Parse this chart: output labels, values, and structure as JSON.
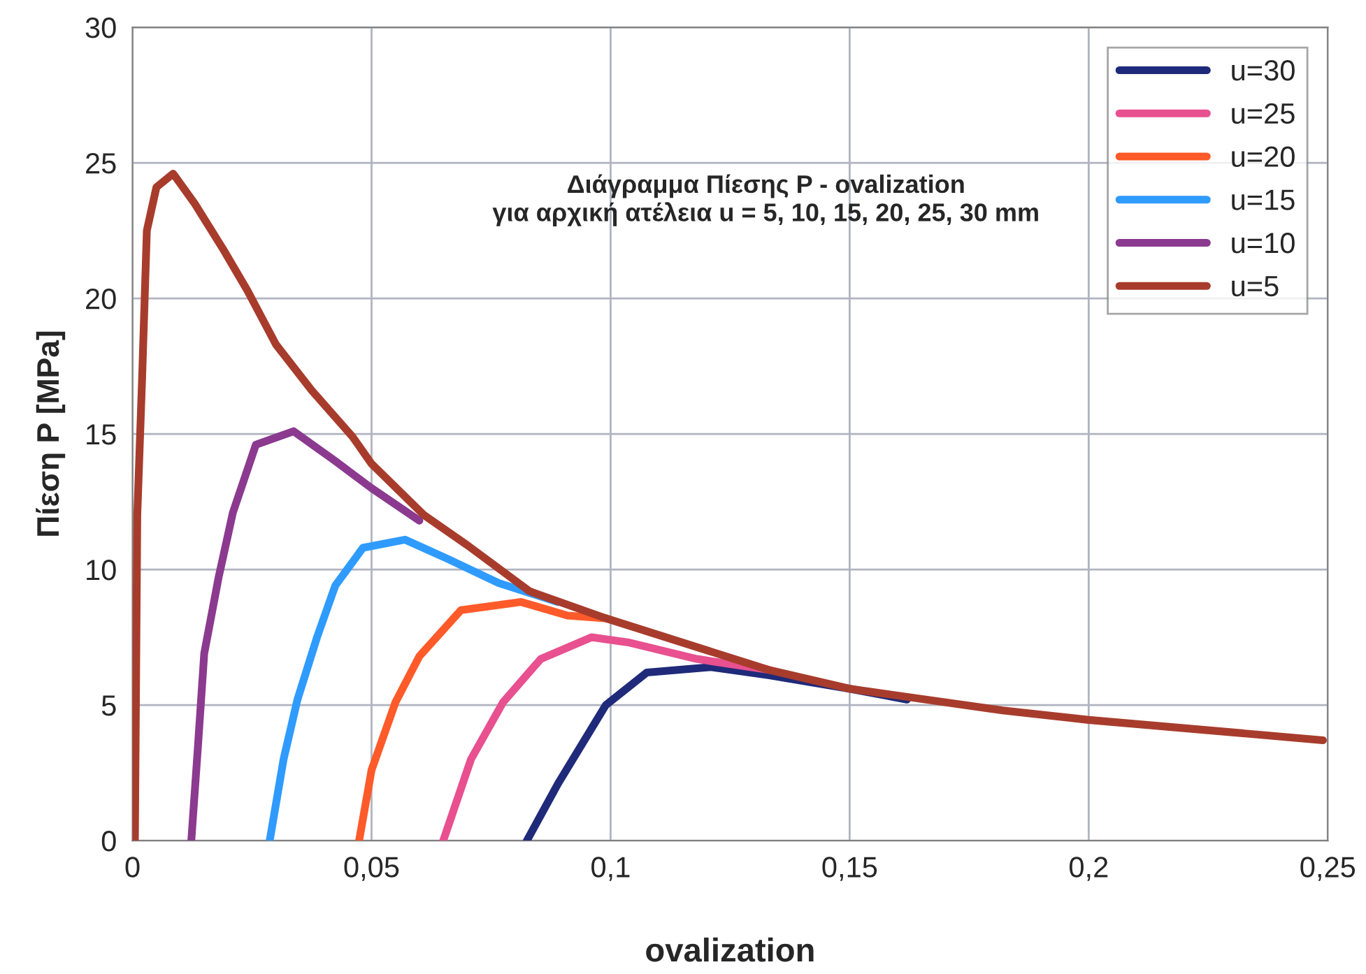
{
  "chart_data": {
    "type": "line",
    "title": "Διάγραμμα Πίεσης P - ovalization",
    "subtitle": "για αρχική ατέλεια u = 5, 10, 15, 20, 25, 30 mm",
    "xlabel": "ovalization",
    "ylabel": "Πίεση P [MPa]",
    "xlim": [
      0,
      0.25
    ],
    "ylim": [
      0,
      30
    ],
    "xticks": [
      0,
      {
        "value": 0.05,
        "label": "0,05"
      },
      {
        "value": 0.1,
        "label": "0,1"
      },
      {
        "value": 0.15,
        "label": "0,15"
      },
      {
        "value": 0.2,
        "label": "0,2"
      },
      {
        "value": 0.25,
        "label": "0,25"
      }
    ],
    "yticks": [
      0,
      5,
      10,
      15,
      20,
      25,
      30
    ],
    "grid": true,
    "legend": "top right",
    "series": [
      {
        "name": "u=30",
        "color": "#1f2a7a",
        "x": [
          0.0825,
          0.089,
          0.099,
          0.1076,
          0.121,
          0.133,
          0.15,
          0.162
        ],
        "values": [
          0,
          2.1,
          5.0,
          6.2,
          6.4,
          6.1,
          5.6,
          5.2
        ]
      },
      {
        "name": "u=25",
        "color": "#e8508f",
        "x": [
          0.065,
          0.0708,
          0.0775,
          0.0854,
          0.096,
          0.104,
          0.118,
          0.133
        ],
        "values": [
          0,
          3.0,
          5.1,
          6.7,
          7.5,
          7.3,
          6.7,
          6.3
        ]
      },
      {
        "name": "u=20",
        "color": "#ff5a2a",
        "x": [
          0.0474,
          0.05,
          0.055,
          0.06,
          0.0687,
          0.0813,
          0.091,
          0.099
        ],
        "values": [
          0,
          2.6,
          5.1,
          6.8,
          8.5,
          8.8,
          8.3,
          8.2
        ]
      },
      {
        "name": "u=15",
        "color": "#2f9bff",
        "x": [
          0.0287,
          0.0316,
          0.0345,
          0.0386,
          0.0424,
          0.0482,
          0.057,
          0.0658,
          0.0766,
          0.089
        ],
        "values": [
          0,
          3.0,
          5.2,
          7.5,
          9.4,
          10.8,
          11.1,
          10.4,
          9.5,
          8.8
        ]
      },
      {
        "name": "u=10",
        "color": "#8b3a8f",
        "x": [
          0.0123,
          0.0137,
          0.015,
          0.018,
          0.021,
          0.0258,
          0.0337,
          0.0424,
          0.05,
          0.06
        ],
        "values": [
          0,
          3.5,
          6.9,
          9.7,
          12.1,
          14.6,
          15.1,
          14.0,
          13.0,
          11.8
        ]
      },
      {
        "name": "u=5",
        "color": "#a83c2c",
        "x": [
          0.0005,
          0.001,
          0.002,
          0.003,
          0.005,
          0.0085,
          0.013,
          0.019,
          0.024,
          0.03,
          0.0375,
          0.046,
          0.05,
          0.061,
          0.07,
          0.083,
          0.099,
          0.133,
          0.15,
          0.182,
          0.2,
          0.249
        ],
        "values": [
          0,
          12,
          17,
          22.5,
          24.1,
          24.6,
          23.5,
          21.8,
          20.3,
          18.3,
          16.6,
          14.9,
          13.9,
          12.0,
          10.9,
          9.2,
          8.2,
          6.3,
          5.6,
          4.8,
          4.45,
          3.7
        ]
      }
    ]
  }
}
